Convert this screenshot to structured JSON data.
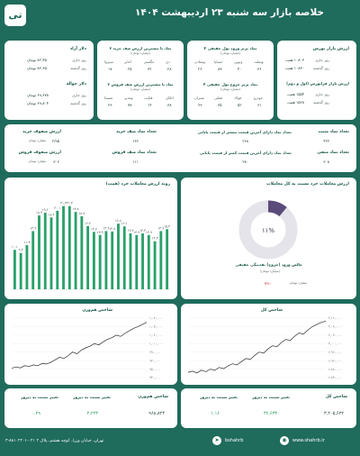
{
  "header": {
    "title": "خلاصه بازار سه شنبه ۲۳ اردیبهشت ۱۴۰۴",
    "logo_text": "تی"
  },
  "colors": {
    "background": "#1f6b5c",
    "card": "#ffffff",
    "bar": "#2aa06a",
    "accent_dark": "#1c5a4c",
    "donut": "#5b4b7a",
    "line": "#2c2c2c"
  },
  "bourse": {
    "title": "ارزش بازار بورس",
    "rows": [
      {
        "label": "روز جاری",
        "value": "۱۰۸۰۳ همت"
      },
      {
        "label": "روز گذشته",
        "value": "۱۰۸۳۰ همت"
      }
    ]
  },
  "farabourse": {
    "title": "ارزش بازار فرابورس (اول و دوم)",
    "rows": [
      {
        "label": "روز جاری",
        "value": "۱۵۵۴ همت"
      },
      {
        "label": "روز گذشته",
        "value": "۱۵۶۸ همت"
      }
    ]
  },
  "realmoney_in": {
    "title": "۴ نماد برتر ورود پول حقیقی",
    "unit": "(میلیارد تومان)",
    "symbols": [
      "ومعادن",
      "خساپا",
      "ونوین",
      "وبملت"
    ],
    "values": [
      "۲۶",
      "۸۷",
      "۴۰",
      "۳۶"
    ]
  },
  "realmoney_out": {
    "title": "۴ نماد برتر خروج پول حقیقی",
    "unit": "(میلیارد تومان)",
    "symbols": [
      "شتران",
      "فملی",
      "فولاد",
      "خودرو"
    ],
    "values": [
      "۶۹",
      "۳۵",
      "۵۲",
      "۶۱"
    ]
  },
  "buy_queue": {
    "title": "۴ نماد با بیشترین ارزش صف خرید",
    "unit": "(میلیارد تومان)",
    "symbols": [
      "سبزوا",
      "اخابر",
      "خگستر",
      "دی"
    ],
    "values": [
      "۱۷",
      "۲۵",
      "۳۲",
      "۲۸"
    ]
  },
  "sell_queue": {
    "title": "۴ نماد با بیشترین ارزش صف فروش",
    "unit": "(میلیارد تومان)",
    "symbols": [
      "شستا",
      "وغدیر",
      "قثابت",
      "اتکای"
    ],
    "values": [
      "۲۹",
      "۷۷",
      "۱۴",
      "۳۸"
    ]
  },
  "dollar": {
    "title": "دلار آزاد",
    "rows": [
      {
        "label": "روز جاری",
        "value": "۸۲,۴۵۰ تومان"
      },
      {
        "label": "روز گذشته",
        "value": "۸۲,۶۵۰ تومان"
      }
    ]
  },
  "remittance": {
    "title": "دلار حواله",
    "rows": [
      {
        "label": "روز جاری",
        "value": "۶۹,۶۷۸ تومان"
      },
      {
        "label": "روز گذشته",
        "value": "۶۹,۸۰۴ تومان"
      }
    ]
  },
  "stats": {
    "positive_count": {
      "label": "تعداد نماد مثبت",
      "value": "۴۲۲"
    },
    "buy_queue_count": {
      "label": "تعداد نماد صف خرید",
      "value": "۱۳۶"
    },
    "buy_queue_value": {
      "label": "ارزش صفوف خرید",
      "value": "۲/۹۵",
      "unit": "میلیارد تومان"
    },
    "negative_count": {
      "label": "تعداد نماد منفی",
      "value": "۳۰۸"
    },
    "sell_queue_count": {
      "label": "تعداد نماد صف فروش",
      "value": "۱۱۱"
    },
    "sell_queue_value": {
      "label": "ارزش صفوف فروش",
      "value": "۳۰۲",
      "unit": "میلیارد تومان"
    },
    "final_above": {
      "label": "تعداد نماد دارای آخرین قیمت بیشتر از قیمت پایانی",
      "value": "۲۶۸"
    },
    "final_below": {
      "label": "تعداد نماد دارای آخرین قیمت کمتر از قیمت پایانی",
      "value": "۲۸۰"
    }
  },
  "bar_chart": {
    "title": "روند ارزش معاملات خرد (همت)",
    "chart_data": {
      "type": "bar",
      "title": "روند ارزش معاملات خرد (همت)",
      "values": [
        10.1,
        9.3,
        11.3,
        14.9,
        18.9,
        19.6,
        18.4,
        20.1,
        21.3,
        21.3,
        19.8,
        18.7,
        16.2,
        14.7,
        13.9,
        14.9,
        14.8,
        16.8,
        16.1,
        14.3,
        13.9,
        14.3,
        13.9,
        12.3,
        14.9,
        15.4
      ],
      "labels": [
        "۱۰.۱",
        "۹.۳",
        "۱۱.۳",
        "۱۴.۹",
        "۱۸.۹",
        "۱۹.۶",
        "۱۸.۴",
        "۲۰.۱",
        "۲۱.۳",
        "۲۱.۳",
        "۱۹.۸",
        "۱۸.۷",
        "۱۶.۲",
        "۱۴.۷",
        "۱۳.۹",
        "۱۴.۹",
        "۱۴.۸",
        "۱۶.۸",
        "۱۶.۱",
        "۱۴.۳",
        "۱۳.۹",
        "۱۴.۳",
        "۱۳.۹",
        "۱۲.۳",
        "۱۴.۹",
        "۱۵.۴"
      ],
      "ylim": [
        0,
        24
      ]
    }
  },
  "donut": {
    "title": "ارزش معاملات خرد نسبت به کل معاملات",
    "percent_label": "۱۱%",
    "fraction": 0.11,
    "legend_title": "خالص ورود (خروج) نقدینگی حقیقی",
    "legend_unit": "(میلیارد تومان)",
    "net_value": "-۳۱",
    "net_unit": "میلیارد تومان"
  },
  "hamvazn_chart": {
    "title": "شاخص هم‌وزن",
    "y_ticks": [
      "۱,۰۷۰,۰۰۰",
      "۱,۰۵۰,۰۰۰",
      "۱,۰۳۰,۰۰۰",
      "۱,۰۱۰,۰۰۰",
      "۹۹۰,۰۰۰",
      "۹۷۰,۰۰۰",
      "۹۵۰,۰۰۰",
      "۹۳۰,۰۰۰"
    ],
    "chart_data": {
      "type": "line",
      "title": "شاخص هم‌وزن",
      "ylim": [
        930000,
        1070000
      ],
      "values": [
        952000,
        955000,
        953000,
        958000,
        956000,
        960000,
        958000,
        963000,
        962000,
        966000,
        972000,
        978000,
        975000,
        982000,
        990000,
        986000,
        995000,
        1000000,
        1004000,
        1010000,
        1007000,
        1014000,
        1020000,
        1024000,
        1030000,
        1027000,
        1034000,
        1040000,
        1046000,
        1050000,
        1055000,
        1060000
      ]
    }
  },
  "kol_chart": {
    "title": "شاخص کل",
    "y_ticks": [
      "۳,۱۲۰,۰۰۰",
      "۳,۰۸۰,۰۰۰",
      "۳,۰۴۰,۰۰۰",
      "۳,۰۰۰,۰۰۰",
      "۲,۹۶۰,۰۰۰",
      "۲,۹۲۰,۰۰۰",
      "۲,۸۸۰,۰۰۰",
      "۲,۸۴۰,۰۰۰"
    ],
    "chart_data": {
      "type": "line",
      "title": "شاخص کل",
      "ylim": [
        2840000,
        3120000
      ],
      "values": [
        2865000,
        2870000,
        2862000,
        2875000,
        2868000,
        2880000,
        2874000,
        2888000,
        2882000,
        2895000,
        2905000,
        2900000,
        2915000,
        2930000,
        2925000,
        2945000,
        2960000,
        2955000,
        2975000,
        2990000,
        2985000,
        3005000,
        3020000,
        3015000,
        3035000,
        3050000,
        3045000,
        3065000,
        3080000,
        3090000,
        3100000,
        3106000
      ]
    }
  },
  "bottom_hamvazn": {
    "h1": "شاخص هم‌وزن",
    "h2": "تغییر نسبت به دیروز",
    "h3": "تغییر نسبت به دیروز",
    "v1": "۹۶۸,۸۲۴",
    "v2": "۲,۲۲۳",
    "v3": "۰.۲۹"
  },
  "bottom_kol": {
    "h1": "شاخص کل",
    "h2": "تغییر نسبت به دیروز",
    "h3": "تغییر نسبت به دیروز",
    "v1": "۳,۲۰۵,۶۲۲",
    "v2": "۳۶,۶۳۳",
    "v3": "۱.۱۶"
  },
  "footer": {
    "address": "تهران، خیابان وزرا، کوچه هشتم، پلاک ۲ ۰۲۱-۸۸۱۰۲۲۰۱-۳",
    "handle": "bshahrb",
    "website": "www.shahrb.ir"
  }
}
